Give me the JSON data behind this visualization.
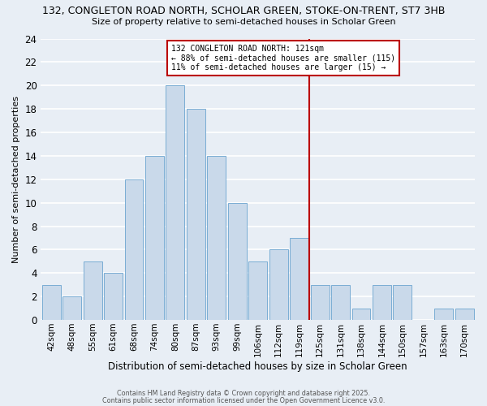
{
  "title_line1": "132, CONGLETON ROAD NORTH, SCHOLAR GREEN, STOKE-ON-TRENT, ST7 3HB",
  "title_line2": "Size of property relative to semi-detached houses in Scholar Green",
  "xlabel": "Distribution of semi-detached houses by size in Scholar Green",
  "ylabel": "Number of semi-detached properties",
  "categories": [
    "42sqm",
    "48sqm",
    "55sqm",
    "61sqm",
    "68sqm",
    "74sqm",
    "80sqm",
    "87sqm",
    "93sqm",
    "99sqm",
    "106sqm",
    "112sqm",
    "119sqm",
    "125sqm",
    "131sqm",
    "138sqm",
    "144sqm",
    "150sqm",
    "157sqm",
    "163sqm",
    "170sqm"
  ],
  "values": [
    3,
    2,
    5,
    4,
    12,
    14,
    20,
    18,
    14,
    10,
    5,
    6,
    7,
    3,
    3,
    1,
    3,
    3,
    0,
    1,
    1
  ],
  "bar_color": "#c9d9ea",
  "bar_edge_color": "#7aadd4",
  "vline_x": 12.5,
  "vline_color": "#bb0000",
  "annotation_title": "132 CONGLETON ROAD NORTH: 121sqm",
  "annotation_line2": "← 88% of semi-detached houses are smaller (115)",
  "annotation_line3": "11% of semi-detached houses are larger (15) →",
  "annotation_box_color": "#bb0000",
  "ylim": [
    0,
    24
  ],
  "yticks": [
    0,
    2,
    4,
    6,
    8,
    10,
    12,
    14,
    16,
    18,
    20,
    22,
    24
  ],
  "background_color": "#e8eef5",
  "grid_color": "#ffffff",
  "footer_line1": "Contains HM Land Registry data © Crown copyright and database right 2025.",
  "footer_line2": "Contains public sector information licensed under the Open Government Licence v3.0."
}
